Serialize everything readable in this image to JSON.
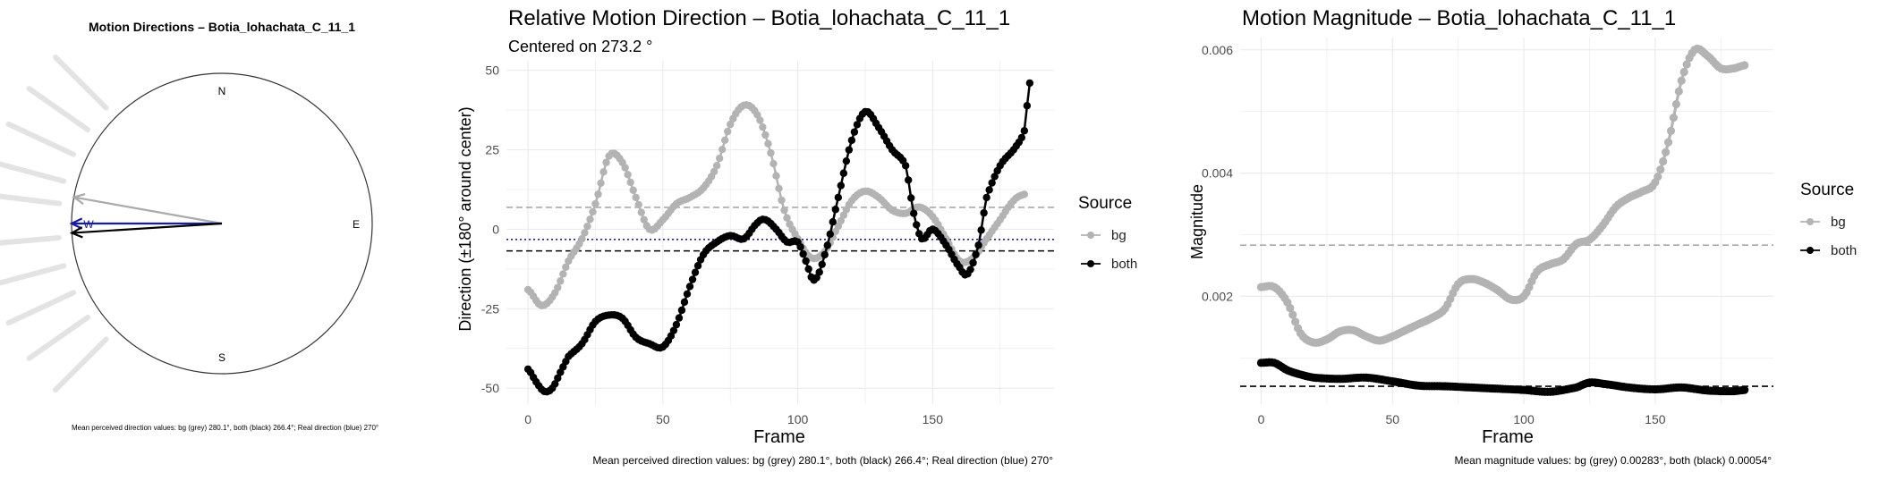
{
  "chart_data": [
    {
      "type": "compass",
      "title": "Motion Directions – Botia_lohachata_C_11_1",
      "cardinals": [
        "N",
        "E",
        "S",
        "W"
      ],
      "arrows": [
        {
          "name": "bg",
          "direction_deg": 280.1,
          "color": "#aaaaaa"
        },
        {
          "name": "both",
          "direction_deg": 266.4,
          "color": "#000000"
        },
        {
          "name": "real",
          "direction_deg": 270,
          "color": "#1a1aa6"
        }
      ],
      "bg_rays_deg": [
        315,
        305,
        295,
        285,
        277,
        265,
        255,
        245,
        235,
        225
      ],
      "footer": "Mean perceived direction values: bg (grey) 280.1°, both (black) 266.4°; Real direction (blue) 270°"
    },
    {
      "type": "line",
      "title": "Relative Motion Direction – Botia_lohachata_C_11_1",
      "subtitle": "Centered on  273.2 °",
      "xlabel": "Frame",
      "ylabel": "Direction (±180° around center)",
      "xlim": [
        -8,
        195
      ],
      "ylim": [
        -55,
        53
      ],
      "xticks": [
        0,
        50,
        100,
        150
      ],
      "yticks": [
        -50,
        -25,
        0,
        25,
        50
      ],
      "grid": true,
      "legend": {
        "title": "Source",
        "position": "right",
        "entries": [
          "bg",
          "both"
        ]
      },
      "series": [
        {
          "name": "bg",
          "color": "#b3b3b3",
          "points": [
            [
              0,
              -19
            ],
            [
              5,
              -24
            ],
            [
              10,
              -20
            ],
            [
              15,
              -10
            ],
            [
              20,
              -3
            ],
            [
              25,
              8
            ],
            [
              30,
              23
            ],
            [
              35,
              21
            ],
            [
              40,
              10
            ],
            [
              45,
              0
            ],
            [
              50,
              3
            ],
            [
              55,
              8
            ],
            [
              60,
              10
            ],
            [
              65,
              13
            ],
            [
              70,
              20
            ],
            [
              75,
              33
            ],
            [
              80,
              39
            ],
            [
              85,
              36
            ],
            [
              90,
              24
            ],
            [
              95,
              6
            ],
            [
              100,
              -3
            ],
            [
              105,
              -9
            ],
            [
              110,
              -7
            ],
            [
              115,
              1
            ],
            [
              120,
              9
            ],
            [
              125,
              12
            ],
            [
              130,
              10
            ],
            [
              135,
              6
            ],
            [
              140,
              5
            ],
            [
              145,
              7
            ],
            [
              150,
              4
            ],
            [
              155,
              -3
            ],
            [
              160,
              -10
            ],
            [
              165,
              -9
            ],
            [
              170,
              -3
            ],
            [
              175,
              3
            ],
            [
              180,
              9
            ],
            [
              184,
              11
            ]
          ]
        },
        {
          "name": "both",
          "color": "#000000",
          "points": [
            [
              0,
              -44
            ],
            [
              3,
              -48
            ],
            [
              6,
              -51
            ],
            [
              9,
              -50
            ],
            [
              12,
              -45
            ],
            [
              15,
              -40
            ],
            [
              20,
              -36
            ],
            [
              25,
              -29
            ],
            [
              30,
              -27
            ],
            [
              35,
              -28
            ],
            [
              40,
              -34
            ],
            [
              45,
              -36
            ],
            [
              50,
              -37
            ],
            [
              55,
              -30
            ],
            [
              60,
              -18
            ],
            [
              65,
              -8
            ],
            [
              70,
              -4
            ],
            [
              75,
              -2
            ],
            [
              80,
              -3
            ],
            [
              85,
              2
            ],
            [
              88,
              3
            ],
            [
              92,
              0
            ],
            [
              96,
              -4
            ],
            [
              100,
              -4
            ],
            [
              103,
              -10
            ],
            [
              106,
              -16
            ],
            [
              110,
              -8
            ],
            [
              115,
              10
            ],
            [
              120,
              28
            ],
            [
              125,
              37
            ],
            [
              130,
              32
            ],
            [
              135,
              25
            ],
            [
              140,
              20
            ],
            [
              143,
              5
            ],
            [
              146,
              -3
            ],
            [
              150,
              0
            ],
            [
              155,
              -5
            ],
            [
              160,
              -12
            ],
            [
              163,
              -14
            ],
            [
              167,
              -5
            ],
            [
              170,
              10
            ],
            [
              175,
              20
            ],
            [
              180,
              25
            ],
            [
              184,
              31
            ],
            [
              186,
              46
            ]
          ]
        }
      ],
      "hlines": [
        {
          "name": "bg mean",
          "y": 6.9,
          "color": "#aaaaaa",
          "style": "dashed"
        },
        {
          "name": "both mean",
          "y": -6.8,
          "color": "#000000",
          "style": "dashed"
        },
        {
          "name": "real",
          "y": -3.2,
          "color": "#1a1aa6",
          "style": "dotted"
        }
      ],
      "footer": "Mean perceived direction values: bg (grey) 280.1°, both (black) 266.4°; Real direction (blue) 270°"
    },
    {
      "type": "line",
      "title": "Motion Magnitude – Botia_lohachata_C_11_1",
      "xlabel": "Frame",
      "ylabel": "Magnitude",
      "xlim": [
        -8,
        195
      ],
      "ylim": [
        0.00025,
        0.0062
      ],
      "xticks": [
        0,
        50,
        100,
        150
      ],
      "yticks": [
        0.002,
        0.004,
        0.006
      ],
      "grid": true,
      "legend": {
        "title": "Source",
        "position": "right",
        "entries": [
          "bg",
          "both"
        ]
      },
      "series": [
        {
          "name": "bg",
          "color": "#b3b3b3",
          "points": [
            [
              0,
              0.00215
            ],
            [
              5,
              0.00215
            ],
            [
              10,
              0.0019
            ],
            [
              15,
              0.0014
            ],
            [
              20,
              0.00125
            ],
            [
              25,
              0.0013
            ],
            [
              30,
              0.00143
            ],
            [
              35,
              0.00145
            ],
            [
              40,
              0.00135
            ],
            [
              45,
              0.00128
            ],
            [
              50,
              0.00135
            ],
            [
              55,
              0.00145
            ],
            [
              60,
              0.00155
            ],
            [
              65,
              0.00165
            ],
            [
              70,
              0.0018
            ],
            [
              75,
              0.0022
            ],
            [
              80,
              0.00228
            ],
            [
              85,
              0.00222
            ],
            [
              90,
              0.0021
            ],
            [
              95,
              0.00195
            ],
            [
              100,
              0.002
            ],
            [
              105,
              0.0024
            ],
            [
              110,
              0.00252
            ],
            [
              115,
              0.0026
            ],
            [
              120,
              0.00285
            ],
            [
              125,
              0.00292
            ],
            [
              130,
              0.00315
            ],
            [
              135,
              0.00345
            ],
            [
              140,
              0.0036
            ],
            [
              145,
              0.0037
            ],
            [
              150,
              0.00385
            ],
            [
              155,
              0.0045
            ],
            [
              160,
              0.0055
            ],
            [
              165,
              0.006
            ],
            [
              170,
              0.0059
            ],
            [
              175,
              0.0057
            ],
            [
              180,
              0.0057
            ],
            [
              184,
              0.00575
            ]
          ]
        },
        {
          "name": "both",
          "color": "#000000",
          "points": [
            [
              0,
              0.00092
            ],
            [
              5,
              0.00092
            ],
            [
              10,
              0.0008
            ],
            [
              15,
              0.00073
            ],
            [
              20,
              0.00068
            ],
            [
              30,
              0.00066
            ],
            [
              40,
              0.00068
            ],
            [
              50,
              0.00062
            ],
            [
              60,
              0.00055
            ],
            [
              70,
              0.00054
            ],
            [
              80,
              0.00052
            ],
            [
              90,
              0.0005
            ],
            [
              100,
              0.00048
            ],
            [
              110,
              0.00045
            ],
            [
              120,
              0.00052
            ],
            [
              125,
              0.0006
            ],
            [
              130,
              0.00058
            ],
            [
              140,
              0.00052
            ],
            [
              150,
              0.00049
            ],
            [
              160,
              0.00052
            ],
            [
              170,
              0.00047
            ],
            [
              180,
              0.00046
            ],
            [
              184,
              0.00048
            ]
          ]
        }
      ],
      "hlines": [
        {
          "name": "bg mean",
          "y": 0.00283,
          "color": "#aaaaaa",
          "style": "dashed"
        },
        {
          "name": "both mean",
          "y": 0.00054,
          "color": "#000000",
          "style": "dashed"
        }
      ],
      "footer": "Mean magnitude values: bg (grey) 0.00283°, both (black) 0.00054°"
    }
  ]
}
